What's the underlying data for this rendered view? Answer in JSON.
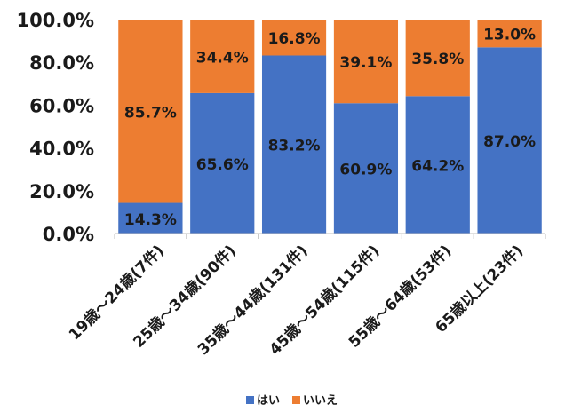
{
  "chart_data": {
    "type": "bar",
    "stacked": true,
    "categories": [
      "19歳～24歳(7件)",
      "25歳～34歳(90件)",
      "35歳～44歳(131件)",
      "45歳～54歳(115件)",
      "55歳～64歳(53件)",
      "65歳以上(23件)"
    ],
    "series": [
      {
        "name": "はい",
        "color": "#4472C4",
        "values": [
          14.3,
          65.6,
          83.2,
          60.9,
          64.2,
          87.0
        ]
      },
      {
        "name": "いいえ",
        "color": "#ED7D31",
        "values": [
          85.7,
          34.4,
          16.8,
          39.1,
          35.8,
          13.0
        ]
      }
    ],
    "ylim": [
      0,
      100
    ],
    "yticks": [
      "0.0%",
      "20.0%",
      "40.0%",
      "60.0%",
      "80.0%",
      "100.0%"
    ],
    "title": "",
    "xlabel": "",
    "ylabel": "",
    "legend_position": "bottom",
    "data_labels": true,
    "grid": false
  }
}
